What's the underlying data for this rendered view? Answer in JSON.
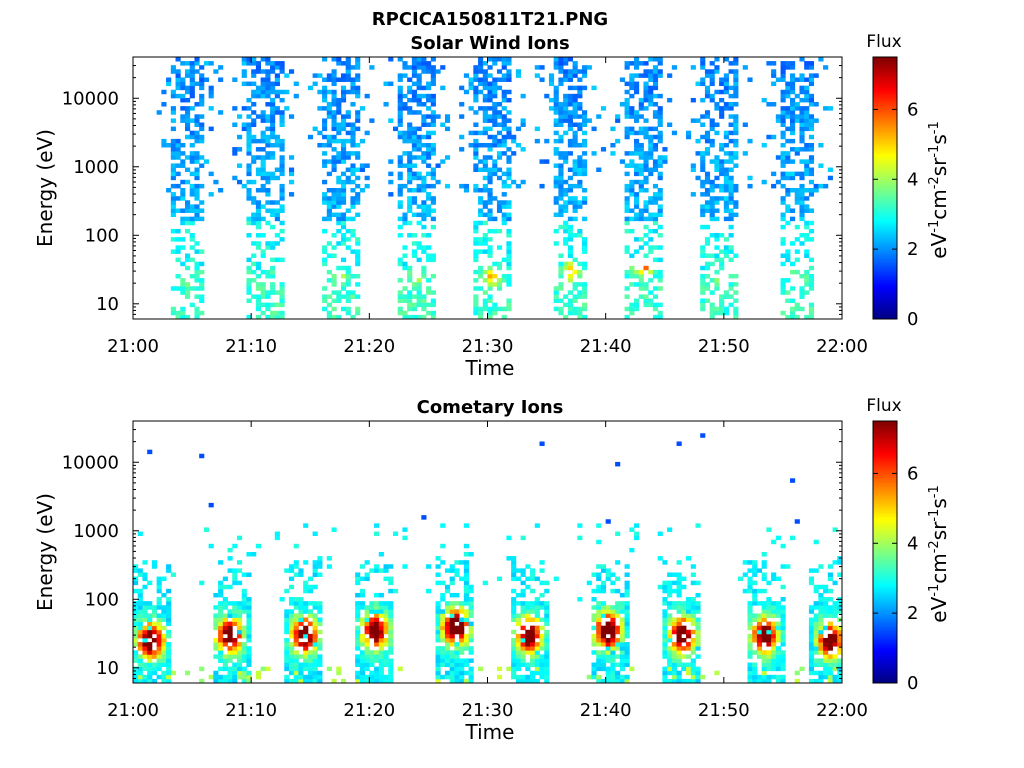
{
  "figure": {
    "title": "RPCICA150811T21.PNG"
  },
  "chart_data": [
    {
      "type": "heatmap",
      "title": "Solar Wind Ions",
      "xlabel": "Time",
      "ylabel": "Energy (eV)",
      "x_ticks": [
        "21:00",
        "21:10",
        "21:20",
        "21:30",
        "21:40",
        "21:50",
        "22:00"
      ],
      "xlim": [
        "21:00",
        "22:00"
      ],
      "yscale": "log",
      "ylim": [
        6,
        40000
      ],
      "y_ticks": [
        "10",
        "100",
        "1000",
        "10000"
      ],
      "colorbar": {
        "title": "Flux",
        "label": "eV-1cm-2sr-1s-1",
        "ticks": [
          "0",
          "2",
          "4",
          "6"
        ],
        "range": [
          0,
          7.5
        ],
        "colormap": "jet"
      },
      "bursts": [
        {
          "center": "21:04.7",
          "low_cutoff_eV": 6,
          "peak_eV": 20,
          "peak_flux": 3.6
        },
        {
          "center": "21:11.2",
          "low_cutoff_eV": 6,
          "peak_eV": 20,
          "peak_flux": 3.6
        },
        {
          "center": "21:17.6",
          "low_cutoff_eV": 6,
          "peak_eV": 25,
          "peak_flux": 4.2
        },
        {
          "center": "21:24.0",
          "low_cutoff_eV": 6,
          "peak_eV": 25,
          "peak_flux": 4.4
        },
        {
          "center": "21:30.4",
          "low_cutoff_eV": 6,
          "peak_eV": 25,
          "peak_flux": 5.2
        },
        {
          "center": "21:37.0",
          "low_cutoff_eV": 6,
          "peak_eV": 30,
          "peak_flux": 5.0
        },
        {
          "center": "21:43.2",
          "low_cutoff_eV": 6,
          "peak_eV": 35,
          "peak_flux": 5.8
        },
        {
          "center": "21:49.6",
          "low_cutoff_eV": 6,
          "peak_eV": 20,
          "peak_flux": 3.8
        },
        {
          "center": "21:56.2",
          "low_cutoff_eV": 6,
          "peak_eV": 20,
          "peak_flux": 3.4
        }
      ]
    },
    {
      "type": "heatmap",
      "title": "Cometary Ions",
      "xlabel": "Time",
      "ylabel": "Energy (eV)",
      "x_ticks": [
        "21:00",
        "21:10",
        "21:20",
        "21:30",
        "21:40",
        "21:50",
        "22:00"
      ],
      "xlim": [
        "21:00",
        "22:00"
      ],
      "yscale": "log",
      "ylim": [
        6,
        40000
      ],
      "y_ticks": [
        "10",
        "100",
        "1000",
        "10000"
      ],
      "colorbar": {
        "title": "Flux",
        "label": "eV-1cm-2sr-1s-1",
        "ticks": [
          "0",
          "2",
          "4",
          "6"
        ],
        "range": [
          0,
          7.5
        ],
        "colormap": "jet"
      },
      "bursts": [
        {
          "center": "21:01.5",
          "peak_eV": 25,
          "peak_flux": 7.0
        },
        {
          "center": "21:08.2",
          "peak_eV": 30,
          "peak_flux": 6.4
        },
        {
          "center": "21:14.5",
          "peak_eV": 30,
          "peak_flux": 6.6
        },
        {
          "center": "21:20.5",
          "peak_eV": 35,
          "peak_flux": 6.2
        },
        {
          "center": "21:27.3",
          "peak_eV": 40,
          "peak_flux": 7.2
        },
        {
          "center": "21:33.5",
          "peak_eV": 30,
          "peak_flux": 6.4
        },
        {
          "center": "21:40.2",
          "peak_eV": 35,
          "peak_flux": 7.0
        },
        {
          "center": "21:46.5",
          "peak_eV": 30,
          "peak_flux": 6.6
        },
        {
          "center": "21:53.5",
          "peak_eV": 30,
          "peak_flux": 6.4
        },
        {
          "center": "21:59.0",
          "peak_eV": 25,
          "peak_flux": 6.2
        }
      ]
    }
  ]
}
